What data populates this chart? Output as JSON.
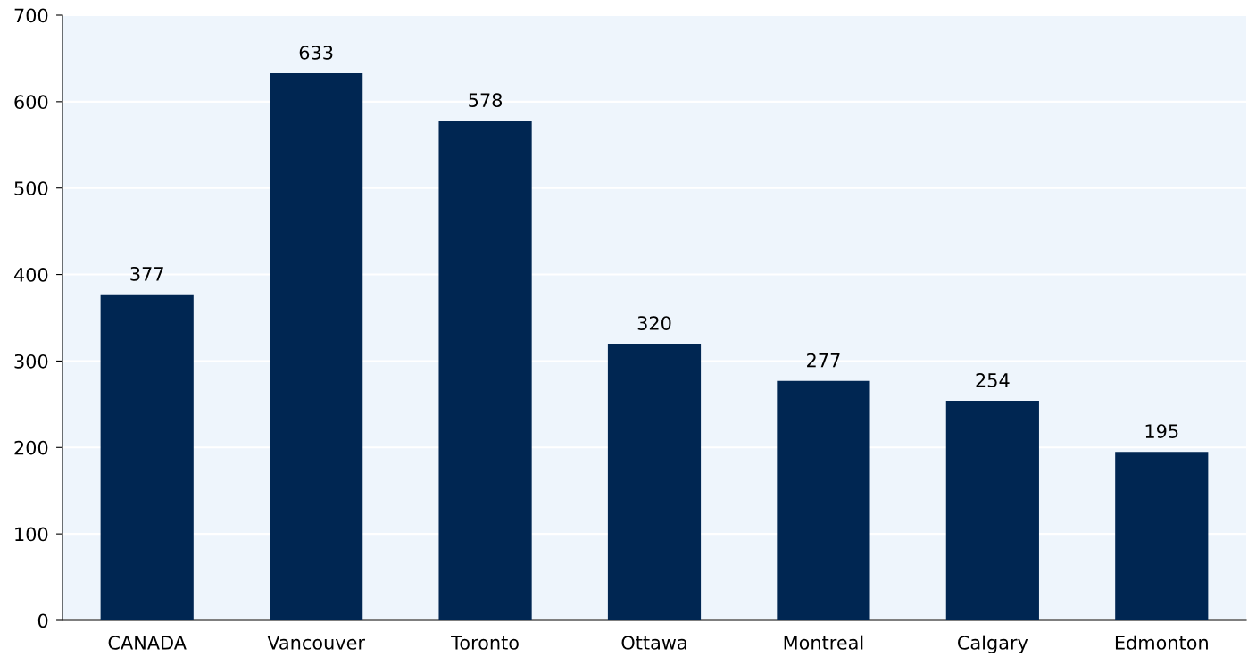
{
  "chart_data": {
    "type": "bar",
    "categories": [
      "CANADA",
      "Vancouver",
      "Toronto",
      "Ottawa",
      "Montreal",
      "Calgary",
      "Edmonton"
    ],
    "values": [
      377,
      633,
      578,
      320,
      277,
      254,
      195
    ],
    "color": "#002652",
    "ylim": [
      0,
      700
    ],
    "yticks": [
      0,
      100,
      200,
      300,
      400,
      500,
      600,
      700
    ],
    "grid": "y",
    "data_labels": true
  }
}
